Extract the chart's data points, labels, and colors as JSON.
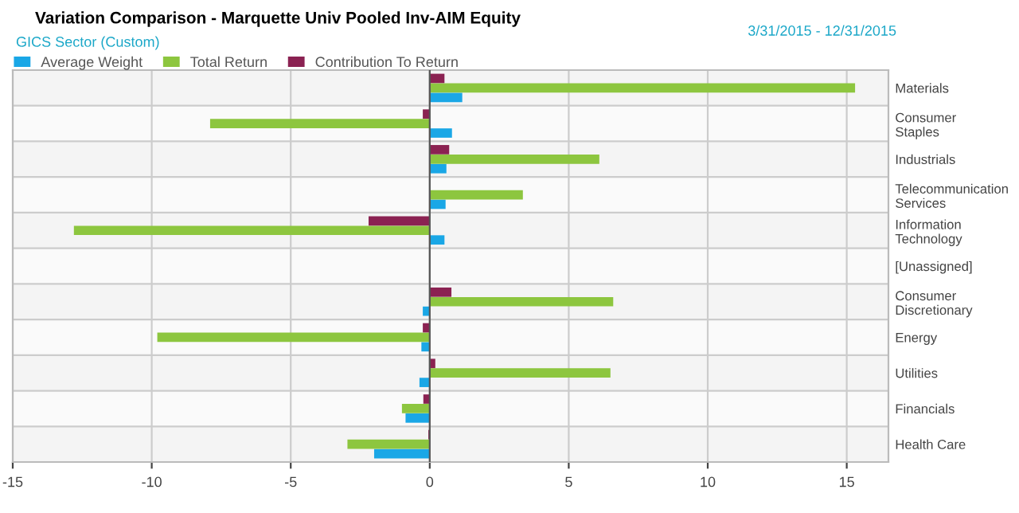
{
  "chart_data": {
    "type": "bar",
    "orientation": "horizontal",
    "title": "Variation Comparison - Marquette Univ Pooled Inv-AIM Equity",
    "legend_title": "GICS Sector (Custom)",
    "annotations": [
      "3/31/2015 - 12/31/2015"
    ],
    "categories": [
      "Materials",
      "Consumer\nStaples",
      "Industrials",
      "Telecommunication\nServices",
      "Information\nTechnology",
      "[Unassigned]",
      "Consumer\nDiscretionary",
      "Energy",
      "Utilities",
      "Financials",
      "Health Care"
    ],
    "series": [
      {
        "name": "Average Weight",
        "color": "#1aa7e6",
        "values": [
          1.17,
          0.8,
          0.6,
          0.57,
          0.53,
          null,
          -0.25,
          -0.3,
          -0.37,
          -0.87,
          -2.0
        ]
      },
      {
        "name": "Total Return",
        "color": "#8dc63f",
        "values": [
          15.3,
          -7.9,
          6.1,
          3.35,
          -12.8,
          null,
          6.6,
          -9.8,
          6.5,
          -1.0,
          -2.96
        ]
      },
      {
        "name": "Contribution To Return",
        "color": "#8b2252",
        "values": [
          0.53,
          -0.25,
          0.7,
          null,
          -2.2,
          null,
          0.78,
          -0.25,
          0.2,
          -0.23,
          -0.05
        ]
      }
    ],
    "xlim": [
      -15,
      16.5
    ],
    "xticks": [
      -15,
      -10,
      -5,
      0,
      5,
      10,
      15
    ],
    "grid": true,
    "legend": "top left"
  }
}
